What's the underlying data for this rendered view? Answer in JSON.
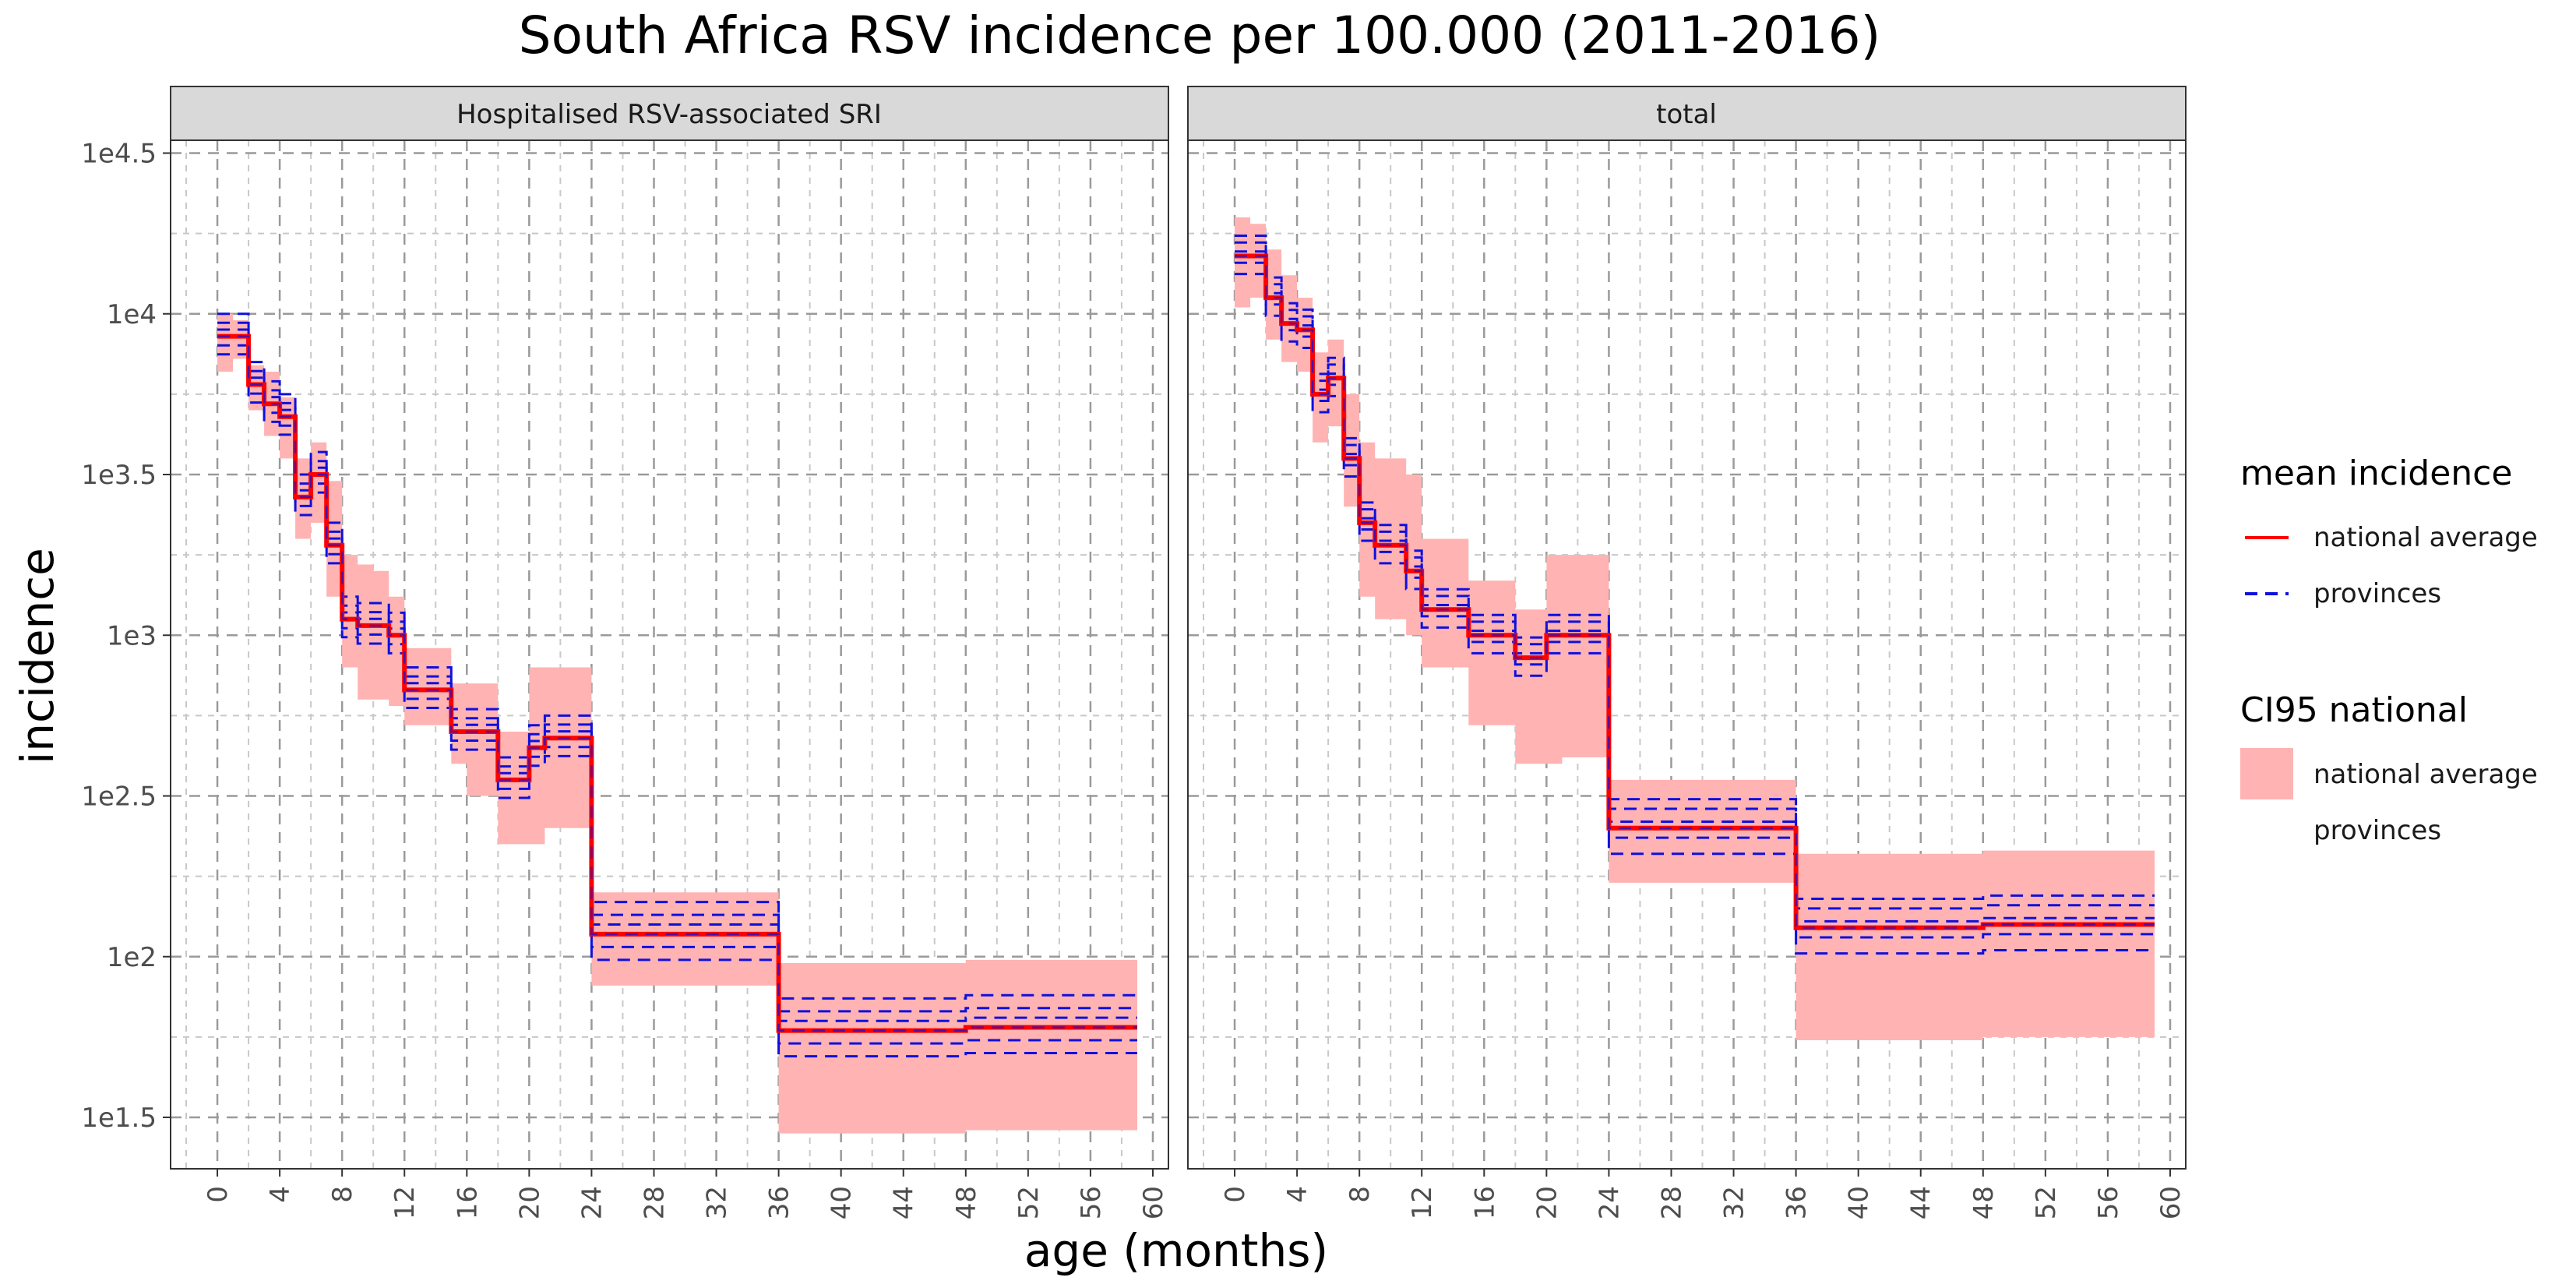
{
  "chart_data": {
    "type": "line",
    "title": "South Africa RSV incidence per 100.000 (2011-2016)",
    "xlabel": "age (months)",
    "ylabel": "incidence",
    "y_scale": "log10",
    "ylim_log10": [
      1.34,
      4.54
    ],
    "xlim": [
      -3,
      61
    ],
    "x_ticks": [
      0,
      4,
      8,
      12,
      16,
      20,
      24,
      28,
      32,
      36,
      40,
      44,
      48,
      52,
      56,
      60
    ],
    "x_tick_labels": [
      "0",
      "4",
      "8",
      "12",
      "16",
      "20",
      "24",
      "28",
      "32",
      "36",
      "40",
      "44",
      "48",
      "52",
      "56",
      "60"
    ],
    "y_ticks_log10": [
      1.5,
      2,
      2.5,
      3,
      3.5,
      4,
      4.5
    ],
    "y_tick_labels": [
      "1e1.5",
      "1e2",
      "1e2.5",
      "1e3",
      "1e3.5",
      "1e4",
      "1e4.5"
    ],
    "grid": true,
    "legend_position": "right",
    "legend": {
      "groups": [
        {
          "title": "mean incidence",
          "items": [
            {
              "label": "national average",
              "style": "solid",
              "color": "#ff0000"
            },
            {
              "label": "provinces",
              "style": "dashed",
              "color": "#1010dd"
            }
          ]
        },
        {
          "title": "CI95 national",
          "items": [
            {
              "label": "national average",
              "style": "fill",
              "color": "#ffb3b3"
            },
            {
              "label": "provinces",
              "style": "none",
              "color": ""
            }
          ]
        }
      ]
    },
    "colors": {
      "national": "#ff0000",
      "provinces": "#1010dd",
      "ci": "#ffb3b3"
    },
    "panels": [
      {
        "strip": "Hospitalised RSV-associated SRI",
        "x": [
          0,
          1,
          2,
          3,
          4,
          5,
          6,
          7,
          8,
          9,
          10,
          11,
          12,
          13,
          14,
          15,
          16,
          17,
          18,
          19,
          20,
          21,
          22,
          23,
          24,
          25,
          26,
          27,
          28,
          29,
          30,
          31,
          32,
          33,
          34,
          35,
          36,
          37,
          38,
          39,
          40,
          41,
          42,
          43,
          44,
          45,
          46,
          47,
          48,
          49,
          50,
          51,
          52,
          53,
          54,
          55,
          56,
          57,
          58,
          59
        ],
        "series_national": [
          3.93,
          3.93,
          3.78,
          3.72,
          3.68,
          3.43,
          3.5,
          3.28,
          3.05,
          3.03,
          3.03,
          3.0,
          2.83,
          2.83,
          2.83,
          2.7,
          2.7,
          2.7,
          2.55,
          2.55,
          2.65,
          2.68,
          2.68,
          2.68,
          2.07,
          2.07,
          2.07,
          2.07,
          2.07,
          2.07,
          2.07,
          2.07,
          2.07,
          2.07,
          2.07,
          2.07,
          1.77,
          1.77,
          1.77,
          1.77,
          1.77,
          1.77,
          1.77,
          1.77,
          1.77,
          1.77,
          1.77,
          1.77,
          1.78,
          1.78,
          1.78,
          1.78,
          1.78,
          1.78,
          1.78,
          1.78,
          1.78,
          1.78,
          1.78,
          1.78
        ],
        "ci_lower": [
          3.82,
          3.86,
          3.7,
          3.62,
          3.55,
          3.3,
          3.35,
          3.12,
          2.9,
          2.8,
          2.8,
          2.78,
          2.72,
          2.72,
          2.72,
          2.6,
          2.5,
          2.5,
          2.35,
          2.35,
          2.35,
          2.4,
          2.4,
          2.4,
          1.91,
          1.91,
          1.91,
          1.91,
          1.91,
          1.91,
          1.91,
          1.91,
          1.91,
          1.91,
          1.91,
          1.91,
          1.45,
          1.45,
          1.45,
          1.45,
          1.45,
          1.45,
          1.45,
          1.45,
          1.45,
          1.45,
          1.45,
          1.45,
          1.46,
          1.46,
          1.46,
          1.46,
          1.46,
          1.46,
          1.46,
          1.46,
          1.46,
          1.46,
          1.46,
          1.46
        ],
        "ci_upper": [
          4.0,
          3.98,
          3.84,
          3.82,
          3.74,
          3.55,
          3.6,
          3.48,
          3.25,
          3.22,
          3.2,
          3.12,
          2.96,
          2.96,
          2.96,
          2.85,
          2.85,
          2.85,
          2.7,
          2.7,
          2.9,
          2.9,
          2.9,
          2.9,
          2.2,
          2.2,
          2.2,
          2.2,
          2.2,
          2.2,
          2.2,
          2.2,
          2.2,
          2.2,
          2.2,
          2.2,
          1.98,
          1.98,
          1.98,
          1.98,
          1.98,
          1.98,
          1.98,
          1.98,
          1.98,
          1.98,
          1.98,
          1.98,
          1.99,
          1.99,
          1.99,
          1.99,
          1.99,
          1.99,
          1.99,
          1.99,
          1.99,
          1.99,
          1.99,
          1.99
        ],
        "province_offsets": [
          -0.08,
          -0.04,
          0.03,
          0.06,
          0.1
        ]
      },
      {
        "strip": "total",
        "x": [
          0,
          1,
          2,
          3,
          4,
          5,
          6,
          7,
          8,
          9,
          10,
          11,
          12,
          13,
          14,
          15,
          16,
          17,
          18,
          19,
          20,
          21,
          22,
          23,
          24,
          25,
          26,
          27,
          28,
          29,
          30,
          31,
          32,
          33,
          34,
          35,
          36,
          37,
          38,
          39,
          40,
          41,
          42,
          43,
          44,
          45,
          46,
          47,
          48,
          49,
          50,
          51,
          52,
          53,
          54,
          55,
          56,
          57,
          58,
          59
        ],
        "series_national": [
          4.18,
          4.18,
          4.05,
          3.97,
          3.95,
          3.75,
          3.8,
          3.55,
          3.35,
          3.28,
          3.28,
          3.2,
          3.08,
          3.08,
          3.08,
          3.0,
          3.0,
          3.0,
          2.93,
          2.93,
          3.0,
          3.0,
          3.0,
          3.0,
          2.4,
          2.4,
          2.4,
          2.4,
          2.4,
          2.4,
          2.4,
          2.4,
          2.4,
          2.4,
          2.4,
          2.4,
          2.09,
          2.09,
          2.09,
          2.09,
          2.09,
          2.09,
          2.09,
          2.09,
          2.09,
          2.09,
          2.09,
          2.09,
          2.1,
          2.1,
          2.1,
          2.1,
          2.1,
          2.1,
          2.1,
          2.1,
          2.1,
          2.1,
          2.1,
          2.1
        ],
        "ci_lower": [
          4.02,
          4.05,
          3.92,
          3.85,
          3.82,
          3.6,
          3.65,
          3.4,
          3.12,
          3.05,
          3.05,
          3.0,
          2.9,
          2.9,
          2.9,
          2.72,
          2.72,
          2.72,
          2.6,
          2.6,
          2.6,
          2.62,
          2.62,
          2.62,
          2.23,
          2.23,
          2.23,
          2.23,
          2.23,
          2.23,
          2.23,
          2.23,
          2.23,
          2.23,
          2.23,
          2.23,
          1.74,
          1.74,
          1.74,
          1.74,
          1.74,
          1.74,
          1.74,
          1.74,
          1.74,
          1.74,
          1.74,
          1.74,
          1.75,
          1.75,
          1.75,
          1.75,
          1.75,
          1.75,
          1.75,
          1.75,
          1.75,
          1.75,
          1.75,
          1.75
        ],
        "ci_upper": [
          4.3,
          4.28,
          4.2,
          4.12,
          4.05,
          3.88,
          3.92,
          3.75,
          3.6,
          3.55,
          3.55,
          3.5,
          3.3,
          3.3,
          3.3,
          3.17,
          3.17,
          3.17,
          3.08,
          3.08,
          3.25,
          3.25,
          3.25,
          3.25,
          2.55,
          2.55,
          2.55,
          2.55,
          2.55,
          2.55,
          2.55,
          2.55,
          2.55,
          2.55,
          2.55,
          2.55,
          2.32,
          2.32,
          2.32,
          2.32,
          2.32,
          2.32,
          2.32,
          2.32,
          2.32,
          2.32,
          2.32,
          2.32,
          2.33,
          2.33,
          2.33,
          2.33,
          2.33,
          2.33,
          2.33,
          2.33,
          2.33,
          2.33,
          2.33,
          2.33
        ],
        "province_offsets": [
          -0.08,
          -0.03,
          0.02,
          0.06,
          0.09
        ]
      }
    ]
  }
}
